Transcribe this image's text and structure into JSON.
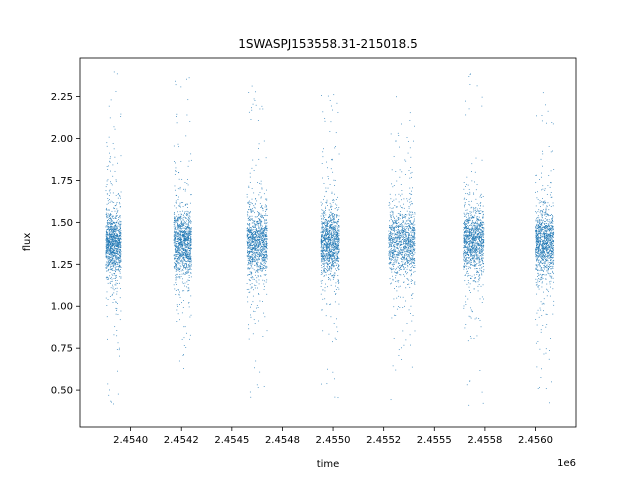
{
  "chart_data": {
    "type": "scatter",
    "title": "1SWASPJ153558.31-215018.5",
    "xlabel": "time",
    "ylabel": "flux",
    "x_offset_label": "1e6",
    "xlim": [
      2453750,
      2456200
    ],
    "ylim": [
      0.28,
      2.48
    ],
    "x_ticks": [
      {
        "value": 2454000,
        "label": "2.4540"
      },
      {
        "value": 2454250,
        "label": "2.4542"
      },
      {
        "value": 2454500,
        "label": "2.4545"
      },
      {
        "value": 2454750,
        "label": "2.4548"
      },
      {
        "value": 2455000,
        "label": "2.4550"
      },
      {
        "value": 2455250,
        "label": "2.4552"
      },
      {
        "value": 2455500,
        "label": "2.4555"
      },
      {
        "value": 2455750,
        "label": "2.4558"
      },
      {
        "value": 2456000,
        "label": "2.4560"
      }
    ],
    "y_ticks": [
      {
        "value": 0.5,
        "label": "0.50"
      },
      {
        "value": 0.75,
        "label": "0.75"
      },
      {
        "value": 1.0,
        "label": "1.00"
      },
      {
        "value": 1.25,
        "label": "1.25"
      },
      {
        "value": 1.5,
        "label": "1.50"
      },
      {
        "value": 1.75,
        "label": "1.75"
      },
      {
        "value": 2.0,
        "label": "2.00"
      },
      {
        "value": 2.25,
        "label": "2.25"
      }
    ],
    "point_color": "#1f77b4",
    "observing_seasons": [
      {
        "time_range": [
          2453878,
          2453953
        ],
        "flux_median": 1.38,
        "flux_min": 0.38,
        "flux_max": 2.4
      },
      {
        "time_range": [
          2454215,
          2454300
        ],
        "flux_median": 1.38,
        "flux_min": 0.55,
        "flux_max": 2.38
      },
      {
        "time_range": [
          2454575,
          2454675
        ],
        "flux_median": 1.38,
        "flux_min": 0.44,
        "flux_max": 2.32
      },
      {
        "time_range": [
          2454940,
          2455030
        ],
        "flux_median": 1.38,
        "flux_min": 0.44,
        "flux_max": 2.32
      },
      {
        "time_range": [
          2455275,
          2455405
        ],
        "flux_median": 1.38,
        "flux_min": 0.38,
        "flux_max": 2.35
      },
      {
        "time_range": [
          2455645,
          2455745
        ],
        "flux_median": 1.38,
        "flux_min": 0.38,
        "flux_max": 2.4
      },
      {
        "time_range": [
          2456000,
          2456090
        ],
        "flux_median": 1.38,
        "flux_min": 0.38,
        "flux_max": 2.35
      }
    ]
  }
}
